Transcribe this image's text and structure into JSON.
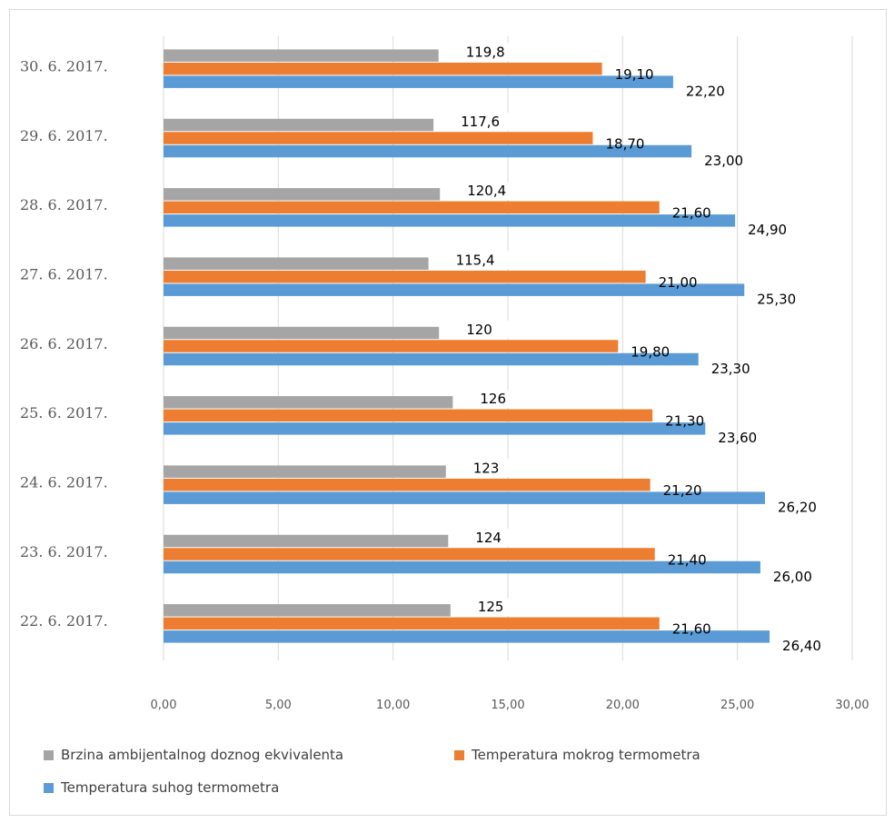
{
  "chart_data": {
    "type": "bar",
    "orientation": "horizontal",
    "title": "",
    "xlabel": "",
    "ylabel": "",
    "xlim": [
      0,
      30
    ],
    "x_ticks": [
      "0,00",
      "5,00",
      "10,00",
      "15,00",
      "20,00",
      "25,00",
      "30,00"
    ],
    "grid": true,
    "legend_position": "bottom",
    "categories": [
      "30. 6. 2017.",
      "29. 6. 2017.",
      "28. 6. 2017.",
      "27. 6. 2017.",
      "26. 6. 2017.",
      "25. 6. 2017.",
      "24. 6. 2017.",
      "23. 6. 2017.",
      "22. 6. 2017."
    ],
    "series": [
      {
        "name": "Brzina ambijentalnog  doznog ekvivalenta",
        "color": "#a5a5a5",
        "values": [
          11.98,
          11.76,
          12.04,
          11.54,
          12.0,
          12.6,
          12.3,
          12.4,
          12.5
        ],
        "labels": [
          "119,8",
          "117,6",
          "120,4",
          "115,4",
          "120",
          "126",
          "123",
          "124",
          "125"
        ]
      },
      {
        "name": "Temperatura mokrog termometra",
        "color": "#ed7d31",
        "values": [
          19.1,
          18.7,
          21.6,
          21.0,
          19.8,
          21.3,
          21.2,
          21.4,
          21.6
        ],
        "labels": [
          "19,10",
          "18,70",
          "21,60",
          "21,00",
          "19,80",
          "21,30",
          "21,20",
          "21,40",
          "21,60"
        ]
      },
      {
        "name": "Temperatura suhog termometra",
        "color": "#5b9bd5",
        "values": [
          22.2,
          23.0,
          24.9,
          25.3,
          23.3,
          23.6,
          26.2,
          26.0,
          26.4
        ],
        "labels": [
          "22,20",
          "23,00",
          "24,90",
          "25,30",
          "23,30",
          "23,60",
          "26,20",
          "26,00",
          "26,40"
        ]
      }
    ]
  }
}
